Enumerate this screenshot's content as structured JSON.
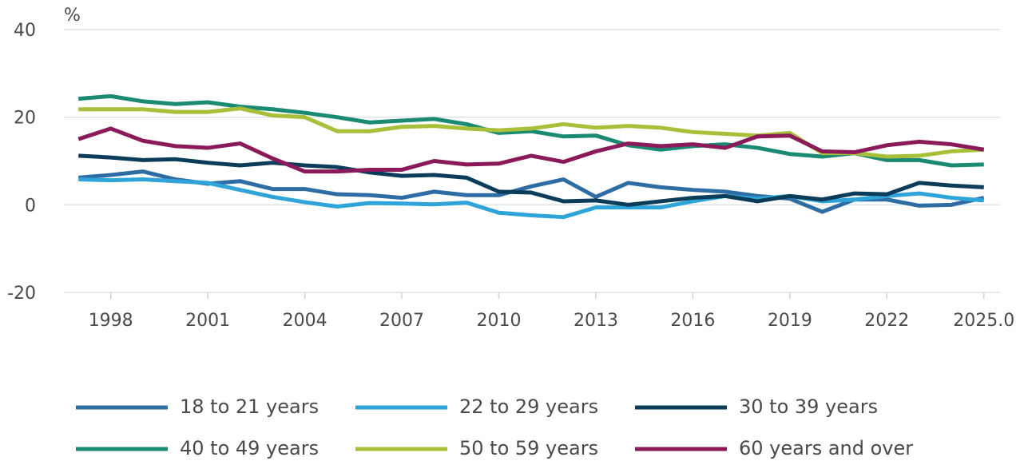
{
  "chart_data": {
    "type": "line",
    "y_label": "%",
    "x": [
      1997,
      1998,
      1999,
      2000,
      2001,
      2002,
      2003,
      2004,
      2005,
      2006,
      2007,
      2008,
      2009,
      2010,
      2011,
      2012,
      2013,
      2014,
      2015,
      2016,
      2017,
      2018,
      2019,
      2020,
      2021,
      2022,
      2023,
      2024,
      2025
    ],
    "series": [
      {
        "name": "18 to 21 years",
        "color": "#2e6da4",
        "values": [
          6.2,
          6.8,
          7.6,
          5.8,
          4.8,
          5.4,
          3.6,
          3.6,
          2.4,
          2.2,
          1.6,
          3.0,
          2.2,
          2.2,
          4.2,
          5.8,
          1.8,
          5.0,
          4.0,
          3.4,
          3.0,
          2.0,
          1.4,
          -1.6,
          1.2,
          1.2,
          -0.2,
          0,
          1.6
        ]
      },
      {
        "name": "22 to 29 years",
        "color": "#2fa4d8",
        "values": [
          5.8,
          5.6,
          5.8,
          5.4,
          5.0,
          3.4,
          1.8,
          0.6,
          -0.4,
          0.4,
          0.3,
          0.1,
          0.5,
          -1.8,
          -2.4,
          -2.8,
          -0.6,
          -0.6,
          -0.6,
          0.8,
          2.0,
          1.4,
          2.0,
          0.8,
          1.2,
          2.0,
          2.6,
          1.6,
          1.0
        ]
      },
      {
        "name": "30 to 39 years",
        "color": "#0b3c5a",
        "values": [
          11.2,
          10.8,
          10.2,
          10.4,
          9.6,
          9.0,
          9.6,
          9.0,
          8.6,
          7.4,
          6.6,
          6.8,
          6.2,
          3.0,
          2.8,
          0.8,
          1.0,
          0,
          0.8,
          1.6,
          2.0,
          0.8,
          2.0,
          1.2,
          2.6,
          2.4,
          5.0,
          4.4,
          4.0
        ]
      },
      {
        "name": "40 to 49 years",
        "color": "#1a8a72",
        "values": [
          24.2,
          24.8,
          23.6,
          23.0,
          23.4,
          22.4,
          21.8,
          21.0,
          20.0,
          18.8,
          19.2,
          19.6,
          18.4,
          16.4,
          16.8,
          15.6,
          15.8,
          13.6,
          12.6,
          13.4,
          13.8,
          13.0,
          11.6,
          11.0,
          11.8,
          10.2,
          10.2,
          9.0,
          9.2
        ]
      },
      {
        "name": "50 to 59 years",
        "color": "#a8bf3a",
        "values": [
          21.8,
          21.8,
          21.8,
          21.2,
          21.2,
          22.0,
          20.4,
          20.0,
          16.8,
          16.8,
          17.8,
          18.0,
          17.4,
          17.0,
          17.4,
          18.4,
          17.6,
          18.0,
          17.6,
          16.6,
          16.2,
          15.8,
          16.4,
          11.8,
          11.8,
          11.0,
          11.2,
          12.2,
          12.6
        ]
      },
      {
        "name": "60 years and over",
        "color": "#8b1a5a",
        "values": [
          15.0,
          17.4,
          14.6,
          13.4,
          13.0,
          14.0,
          10.6,
          7.6,
          7.6,
          8.0,
          8.0,
          10.0,
          9.2,
          9.4,
          11.2,
          9.8,
          12.2,
          14.0,
          13.4,
          13.8,
          13.0,
          15.6,
          15.8,
          12.2,
          12.0,
          13.6,
          14.4,
          13.8,
          12.6
        ]
      }
    ],
    "xlim": [
      1996.55,
      2025.5
    ],
    "xticks": [
      1998,
      2001,
      2004,
      2007,
      2010,
      2013,
      2016,
      2019,
      2022,
      {
        "value": 2025,
        "label": "2025.0"
      }
    ],
    "ylim": [
      -20,
      40
    ],
    "yticks": [
      -20,
      0,
      20,
      40
    ],
    "grid": true,
    "legend": "bottom"
  }
}
